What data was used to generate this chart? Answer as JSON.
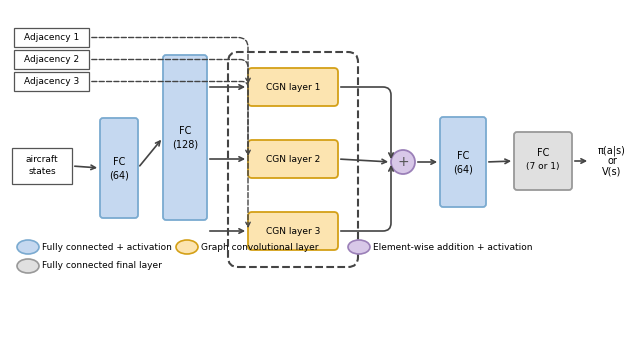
{
  "bg_color": "#ffffff",
  "blue_fill": "#c5d8f0",
  "blue_edge": "#7aaad0",
  "orange_fill": "#fce4b0",
  "orange_edge": "#d4a017",
  "purple_fill": "#d8c8e8",
  "purple_edge": "#9b80b8",
  "gray_fill": "#e0e0e0",
  "gray_edge": "#999999",
  "white_fill": "#ffffff",
  "dark_edge": "#444444",
  "adj_boxes": [
    "Adjacency 1",
    "Adjacency 2",
    "Adjacency 3"
  ],
  "cgn_boxes": [
    "CGN layer 1",
    "CGN layer 2",
    "CGN layer 3"
  ],
  "fc64_label": [
    "FC",
    "(64)"
  ],
  "fc128_label": [
    "FC",
    "(128)"
  ],
  "fc64r_label": [
    "FC",
    "(64)"
  ],
  "fc7_label": [
    "FC",
    "(7 or 1)"
  ],
  "ac_label": [
    "aircraft",
    "states"
  ],
  "output_label": [
    "π(a|s)",
    "or",
    "V(s)"
  ],
  "plus_symbol": "+",
  "legend": [
    {
      "fill": "#c5d8f0",
      "edge": "#7aaad0",
      "label": "Fully connected + activation"
    },
    {
      "fill": "#fce4b0",
      "edge": "#d4a017",
      "label": "Graph convolutional layer"
    },
    {
      "fill": "#d8c8e8",
      "edge": "#9b80b8",
      "label": "Element-wise addition + activation"
    },
    {
      "fill": "#e0e0e0",
      "edge": "#999999",
      "label": "Fully connected final layer"
    }
  ]
}
